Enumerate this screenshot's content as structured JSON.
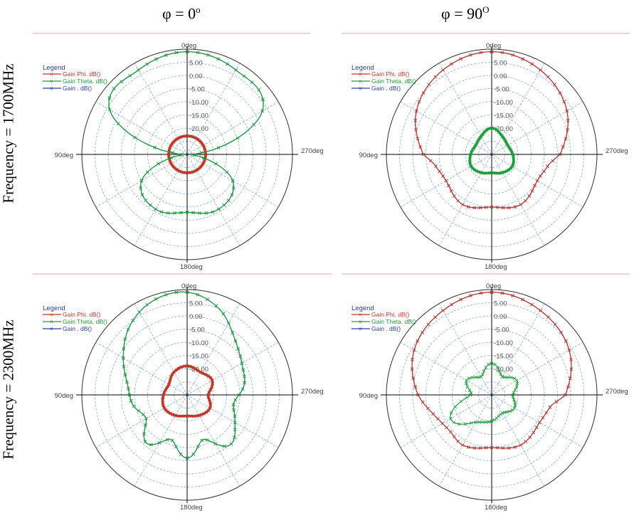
{
  "columns": [
    {
      "phi_symbol": "φ = 0",
      "phi_sup": "o"
    },
    {
      "phi_symbol": "φ = 90",
      "phi_sup": "O"
    }
  ],
  "rows": [
    {
      "label": "Frequency = 1700MHz"
    },
    {
      "label": "Frequency = 2300MHz"
    }
  ],
  "colors": {
    "phi": "#c0392b",
    "theta": "#1e9e3a",
    "gain": "#2c3e9e",
    "grid": "#8ab0d8",
    "axis": "#000000",
    "frame": "#e8a0a0"
  },
  "chart_data": [
    {
      "type": "polar",
      "title": "φ = 0o, Frequency = 1700MHz",
      "angle_labels": [
        "0deg",
        "90deg",
        "270deg",
        "180deg"
      ],
      "radial_ticks": [
        5.0,
        0.0,
        -5.0,
        -10.0,
        -15.0,
        -20.0
      ],
      "radial_range": [
        -30,
        10
      ],
      "legend": {
        "title": "Legend",
        "entries": [
          "Gain Phi. dB()",
          "Gain Theta. dB()",
          "Gain . dB()"
        ],
        "placement": "top-left"
      },
      "series": [
        {
          "name": "Gain Phi. dB()",
          "color": "red",
          "angles_deg": [
            0,
            30,
            60,
            90,
            120,
            150,
            180,
            210,
            240,
            270,
            300,
            330
          ],
          "values_dB": [
            -23,
            -23,
            -23,
            -23,
            -23,
            -23,
            -23,
            -23,
            -23,
            -23,
            -23,
            -23
          ]
        },
        {
          "name": "Gain Theta. dB()",
          "color": "green",
          "angles_deg": [
            0,
            30,
            60,
            90,
            120,
            150,
            180,
            210,
            240,
            270,
            300,
            330
          ],
          "values_dB": [
            9,
            7,
            4,
            -28,
            -10,
            -6,
            -8,
            -6,
            -10,
            -28,
            3,
            7
          ]
        },
        {
          "name": "Gain . dB()",
          "color": "blue",
          "angles_deg": [
            0,
            30,
            60,
            90,
            120,
            150,
            180,
            210,
            240,
            270,
            300,
            330
          ],
          "values_dB": [
            9,
            7,
            4,
            -28,
            -10,
            -6,
            -8,
            -6,
            -10,
            -28,
            3,
            7
          ]
        }
      ]
    },
    {
      "type": "polar",
      "title": "φ = 90O, Frequency = 1700MHz",
      "angle_labels": [
        "0deg",
        "90deg",
        "270deg",
        "180deg"
      ],
      "radial_ticks": [
        5.0,
        0.0,
        -5.0,
        -10.0,
        -15.0,
        -20.0
      ],
      "radial_range": [
        -30,
        10
      ],
      "legend": {
        "title": "Legend",
        "entries": [
          "Gain Phi. dB()",
          "Gain Theta. dB()",
          "Gain . dB()"
        ],
        "placement": "top-left"
      },
      "series": [
        {
          "name": "Gain Phi. dB()",
          "color": "red",
          "angles_deg": [
            0,
            30,
            60,
            90,
            100,
            120,
            150,
            180,
            210,
            240,
            260,
            270,
            300,
            330
          ],
          "values_dB": [
            9,
            7,
            3,
            -4,
            -8,
            -10,
            -8,
            -10,
            -8,
            -10,
            -8,
            -4,
            3,
            7
          ]
        },
        {
          "name": "Gain Theta. dB()",
          "color": "green",
          "angles_deg": [
            0,
            30,
            60,
            90,
            120,
            150,
            180,
            210,
            240,
            270,
            300,
            330
          ],
          "values_dB": [
            -20,
            -22,
            -23,
            -22,
            -21,
            -22,
            -23,
            -22,
            -21,
            -22,
            -23,
            -22
          ]
        },
        {
          "name": "Gain . dB()",
          "color": "blue",
          "angles_deg": [
            0,
            30,
            60,
            90,
            100,
            120,
            150,
            180,
            210,
            240,
            260,
            270,
            300,
            330
          ],
          "values_dB": [
            9,
            7,
            3,
            -4,
            -8,
            -10,
            -8,
            -10,
            -8,
            -10,
            -8,
            -4,
            3,
            7
          ]
        }
      ]
    },
    {
      "type": "polar",
      "title": "φ = 0o, Frequency = 2300MHz",
      "angle_labels": [
        "0deg",
        "90deg",
        "270deg",
        "180deg"
      ],
      "radial_ticks": [
        5.0,
        0.0,
        -5.0,
        -10.0,
        -15.0,
        -20.0
      ],
      "radial_range": [
        -30,
        10
      ],
      "legend": {
        "title": "Legend",
        "entries": [
          "Gain Phi. dB()",
          "Gain Theta. dB()",
          "Gain . dB()"
        ],
        "placement": "top-left"
      },
      "series": [
        {
          "name": "Gain Phi. dB()",
          "color": "red",
          "angles_deg": [
            0,
            30,
            60,
            90,
            120,
            150,
            180,
            210,
            240,
            270,
            300,
            330
          ],
          "values_dB": [
            -19,
            -20,
            -22,
            -21,
            -20,
            -21,
            -22,
            -21,
            -20,
            -22,
            -19,
            -20
          ]
        },
        {
          "name": "Gain Theta. dB()",
          "color": "green",
          "angles_deg": [
            0,
            20,
            40,
            60,
            80,
            100,
            120,
            140,
            160,
            180,
            200,
            220,
            240,
            260,
            280,
            300,
            320,
            340
          ],
          "values_dB": [
            9,
            8,
            4,
            -2,
            -7,
            -9,
            -12,
            -6,
            -12,
            -6,
            -12,
            -5,
            -9,
            -12,
            -8,
            -6,
            -2,
            5
          ]
        },
        {
          "name": "Gain . dB()",
          "color": "blue",
          "angles_deg": [
            0,
            20,
            40,
            60,
            80,
            100,
            120,
            140,
            160,
            180,
            200,
            220,
            240,
            260,
            280,
            300,
            320,
            340
          ],
          "values_dB": [
            9,
            8,
            4,
            -2,
            -7,
            -9,
            -12,
            -6,
            -12,
            -6,
            -12,
            -5,
            -9,
            -12,
            -8,
            -6,
            -2,
            5
          ]
        }
      ]
    },
    {
      "type": "polar",
      "title": "φ = 90O, Frequency = 2300MHz",
      "angle_labels": [
        "0deg",
        "90deg",
        "270deg",
        "180deg"
      ],
      "radial_ticks": [
        5.0,
        0.0,
        -5.0,
        -10.0,
        -15.0,
        -20.0
      ],
      "radial_range": [
        -30,
        10
      ],
      "legend": {
        "title": "Legend",
        "entries": [
          "Gain Phi. dB()",
          "Gain Theta. dB()",
          "Gain . dB()"
        ],
        "placement": "top-left"
      },
      "series": [
        {
          "name": "Gain Phi. dB()",
          "color": "red",
          "angles_deg": [
            0,
            30,
            60,
            90,
            110,
            130,
            150,
            180,
            210,
            240,
            260,
            270,
            300,
            330
          ],
          "values_dB": [
            9,
            7,
            4,
            -2,
            -7,
            -9,
            -8,
            -10,
            -8,
            -9,
            -7,
            -2,
            4,
            7
          ]
        },
        {
          "name": "Gain Theta. dB()",
          "color": "green",
          "angles_deg": [
            0,
            30,
            60,
            90,
            120,
            150,
            180,
            210,
            240,
            270,
            300,
            330
          ],
          "values_dB": [
            -18,
            -22,
            -19,
            -22,
            -12,
            -18,
            -20,
            -22,
            -20,
            -22,
            -19,
            -22
          ]
        },
        {
          "name": "Gain . dB()",
          "color": "blue",
          "angles_deg": [
            0,
            30,
            60,
            90,
            110,
            130,
            150,
            180,
            210,
            240,
            260,
            270,
            300,
            330
          ],
          "values_dB": [
            9,
            7,
            4,
            -2,
            -7,
            -9,
            -8,
            -10,
            -8,
            -9,
            -7,
            -2,
            4,
            7
          ]
        }
      ]
    }
  ]
}
